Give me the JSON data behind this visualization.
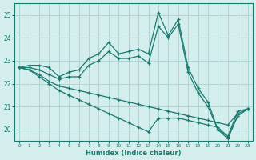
{
  "xlabel": "Humidex (Indice chaleur)",
  "background_color": "#d4eeee",
  "grid_color": "#b0d4d4",
  "line_color": "#1a7a6e",
  "xlim": [
    -0.5,
    23.5
  ],
  "ylim": [
    19.5,
    25.5
  ],
  "yticks": [
    20,
    21,
    22,
    23,
    24,
    25
  ],
  "xticks": [
    0,
    1,
    2,
    3,
    4,
    5,
    6,
    7,
    8,
    9,
    10,
    11,
    12,
    13,
    14,
    15,
    16,
    17,
    18,
    19,
    20,
    21,
    22,
    23
  ],
  "series": [
    [
      22.7,
      22.8,
      22.8,
      22.7,
      22.3,
      22.5,
      22.6,
      23.1,
      23.3,
      23.8,
      23.3,
      23.4,
      23.5,
      23.3,
      25.1,
      24.1,
      24.8,
      22.7,
      21.8,
      21.2,
      20.0,
      19.7,
      20.8,
      20.9
    ],
    [
      22.7,
      22.7,
      22.6,
      22.4,
      22.2,
      22.3,
      22.3,
      22.8,
      23.0,
      23.4,
      23.1,
      23.1,
      23.2,
      22.9,
      24.5,
      24.0,
      24.6,
      22.5,
      21.6,
      21.0,
      20.0,
      19.6,
      20.6,
      20.9
    ],
    [
      22.7,
      22.6,
      22.4,
      22.1,
      21.9,
      21.8,
      21.7,
      21.6,
      21.5,
      21.4,
      21.3,
      21.2,
      21.1,
      21.0,
      20.9,
      20.8,
      20.7,
      20.6,
      20.5,
      20.4,
      20.3,
      20.2,
      20.7,
      20.9
    ],
    [
      22.7,
      22.6,
      22.3,
      22.0,
      21.7,
      21.5,
      21.3,
      21.1,
      20.9,
      20.7,
      20.5,
      20.3,
      20.1,
      19.9,
      20.5,
      20.5,
      20.5,
      20.4,
      20.3,
      20.2,
      20.1,
      19.7,
      20.6,
      20.9
    ]
  ]
}
